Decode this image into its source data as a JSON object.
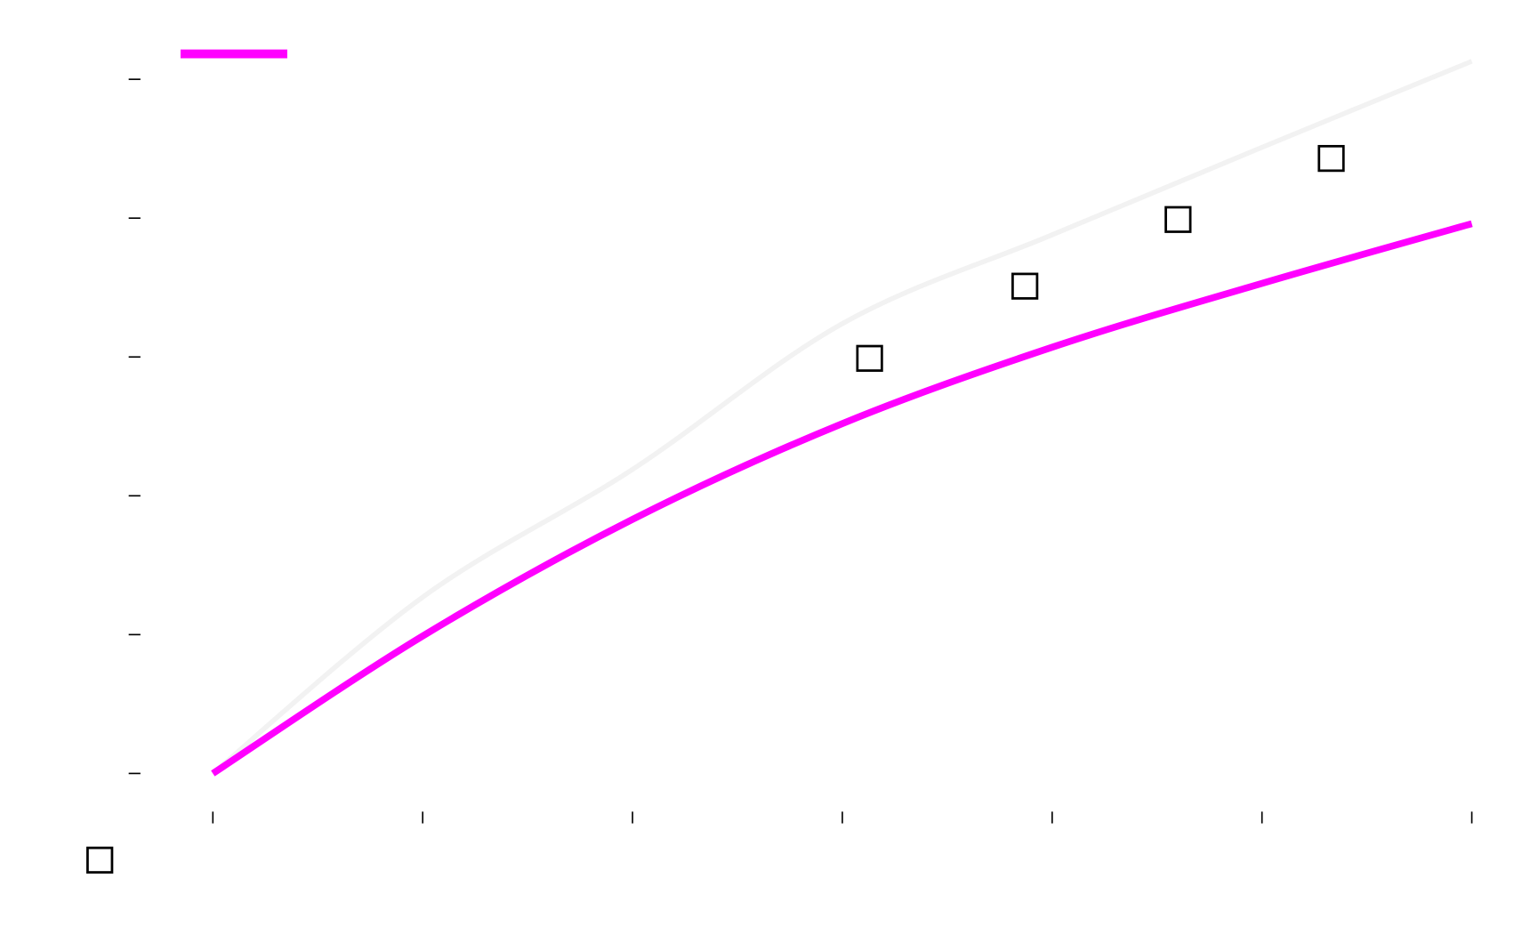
{
  "chart_data": {
    "type": "line",
    "xlim": [
      0,
      6
    ],
    "xticks": [
      0,
      1,
      2,
      3,
      4,
      5,
      6
    ],
    "ylim": [
      0,
      5
    ],
    "yticks": [
      0,
      1,
      2,
      3,
      4,
      5
    ],
    "series": [
      {
        "color": "#ff00ff",
        "x": [
          0,
          1,
          2,
          3,
          4,
          5,
          6
        ],
        "values": [
          0,
          0.99,
          1.83,
          2.52,
          3.07,
          3.53,
          3.96
        ]
      },
      {
        "color": "#f2f2f2",
        "x": [
          0,
          1,
          2,
          3,
          4,
          5,
          6
        ],
        "values": [
          0,
          1.27,
          2.19,
          3.24,
          3.88,
          4.51,
          5.13
        ]
      },
      {
        "type": "scatter",
        "color": "#000000",
        "x": [
          3.13,
          3.87,
          4.6,
          5.33
        ],
        "values": [
          2.99,
          3.51,
          3.99,
          4.43
        ]
      }
    ]
  }
}
